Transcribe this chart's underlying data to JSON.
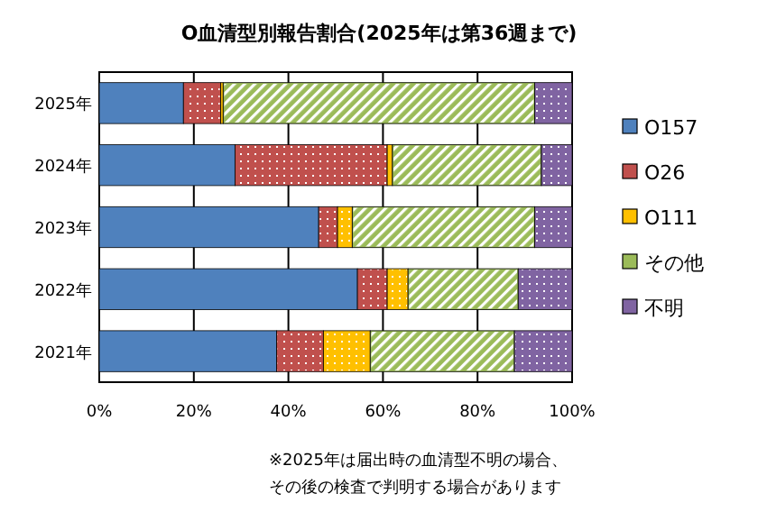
{
  "chart_data": {
    "type": "bar",
    "orientation": "horizontal",
    "stacked": true,
    "title": "O血清型別報告割合(2025年は第36週まで)",
    "categories": [
      "2025年",
      "2024年",
      "2023年",
      "2022年",
      "2021年"
    ],
    "series": [
      {
        "name": "O157",
        "color": "#4f81bd",
        "values": [
          17.8,
          28.7,
          46.4,
          54.6,
          37.5
        ]
      },
      {
        "name": "O26",
        "color": "#c0504d",
        "values": [
          7.9,
          32.2,
          4.0,
          6.3,
          9.9
        ]
      },
      {
        "name": "O111",
        "color": "#ffc000",
        "values": [
          0.5,
          1.1,
          3.1,
          4.4,
          9.9
        ]
      },
      {
        "name": "その他",
        "color": "#9bbb59",
        "values": [
          65.9,
          31.5,
          38.6,
          23.3,
          30.5
        ]
      },
      {
        "name": "不明",
        "color": "#8064a2",
        "values": [
          7.9,
          6.5,
          7.9,
          11.4,
          12.2
        ]
      }
    ],
    "xlim": [
      0,
      100
    ],
    "xticks": [
      {
        "value": 0,
        "label": "0%"
      },
      {
        "value": 20,
        "label": "20%"
      },
      {
        "value": 40,
        "label": "40%"
      },
      {
        "value": 60,
        "label": "60%"
      },
      {
        "value": 80,
        "label": "80%"
      },
      {
        "value": 100,
        "label": "100%"
      }
    ],
    "grid": "x",
    "legend": "right",
    "annotations": [
      "※2025年は届出時の血清型不明の場合、その後の検査で判明する場合があります"
    ]
  }
}
